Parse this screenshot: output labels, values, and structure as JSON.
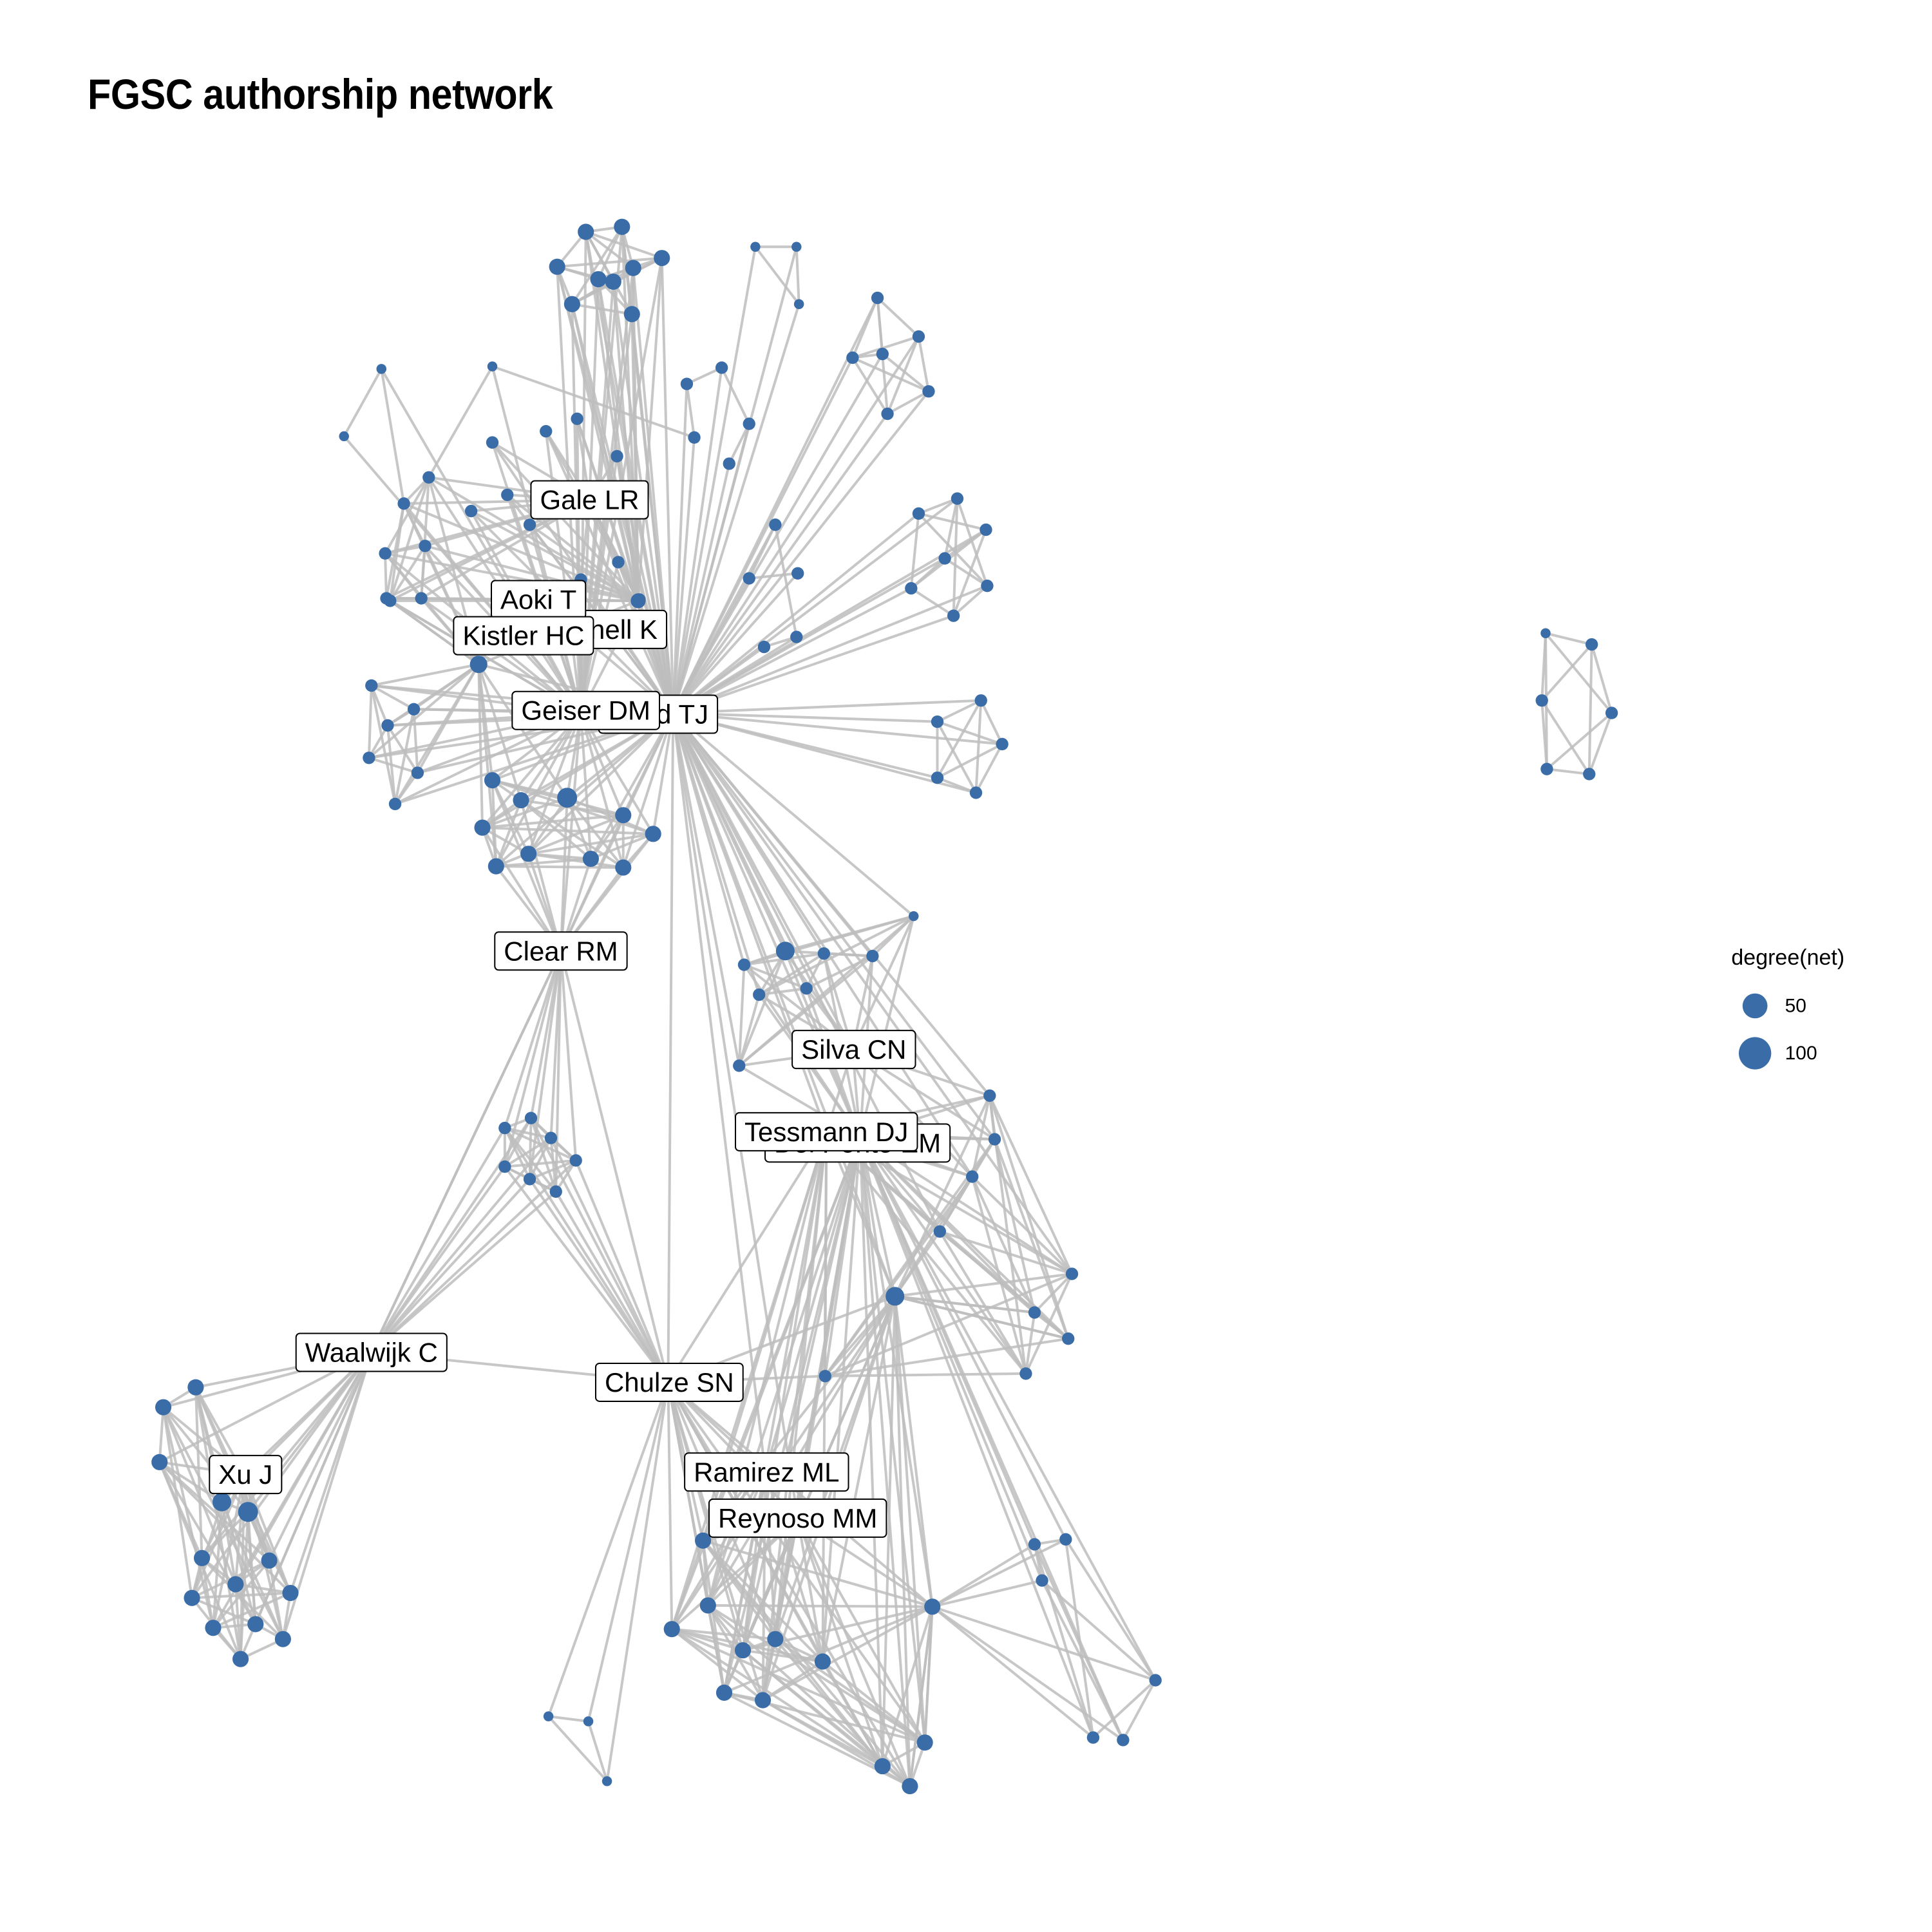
{
  "title": "FGSC authorship network",
  "colors": {
    "node": "#3A6DA8",
    "edge": "#BDBDBD",
    "label_border": "#000000",
    "label_bg": "#FFFFFF"
  },
  "legend": {
    "title": "degree(net)",
    "entries": [
      {
        "value": 50,
        "label": "50"
      },
      {
        "value": 100,
        "label": "100"
      }
    ]
  },
  "labels": [
    "Gale LR",
    "Aoki T",
    "Kistler HC",
    "O'Donnell K",
    "Geiser DM",
    "Ward TJ",
    "Clear RM",
    "Silva CN",
    "Tessmann DJ",
    "Del Ponte EM",
    "Waalwijk C",
    "Chulze SN",
    "Xu J",
    "Ramirez ML",
    "Reynoso MM"
  ]
}
